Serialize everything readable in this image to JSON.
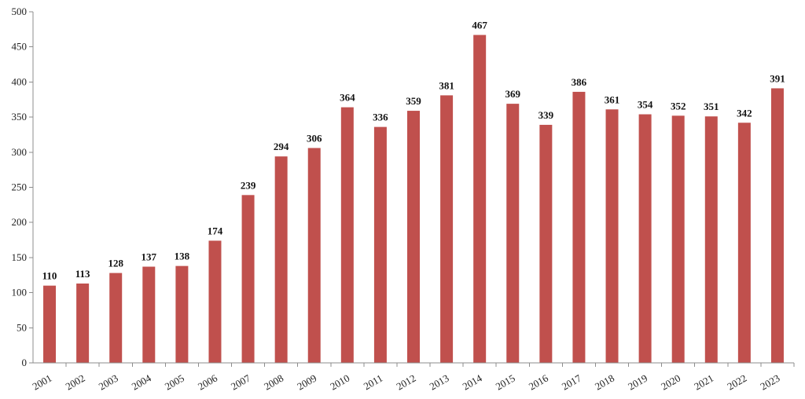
{
  "chart_data": {
    "type": "bar",
    "title": "",
    "xlabel": "",
    "ylabel": "",
    "ylim": [
      0,
      500
    ],
    "yticks": [
      0,
      50,
      100,
      150,
      200,
      250,
      300,
      350,
      400,
      450,
      500
    ],
    "grid": false,
    "legend": "none",
    "bar_color": "#c0504d",
    "categories": [
      "2001",
      "2002",
      "2003",
      "2004",
      "2005",
      "2006",
      "2007",
      "2008",
      "2009",
      "2010",
      "2011",
      "2012",
      "2013",
      "2014",
      "2015",
      "2016",
      "2017",
      "2018",
      "2019",
      "2020",
      "2021",
      "2022",
      "2023"
    ],
    "values": [
      110,
      113,
      128,
      137,
      138,
      174,
      239,
      294,
      306,
      364,
      336,
      359,
      381,
      467,
      369,
      339,
      386,
      361,
      354,
      352,
      351,
      342,
      391
    ],
    "data_labels": true
  }
}
